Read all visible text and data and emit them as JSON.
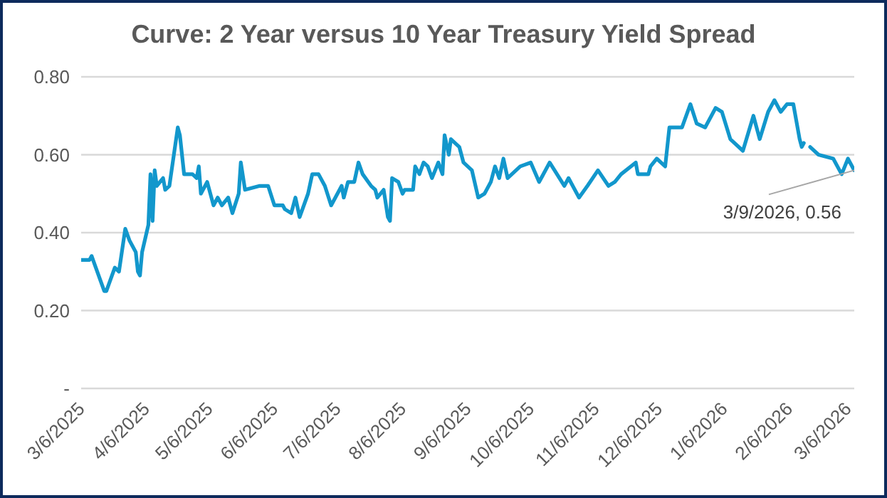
{
  "chart_data": {
    "type": "line",
    "title": "Curve: 2 Year versus 10 Year Treasury Yield Spread",
    "x": [
      "2025-03-06",
      "2025-03-10",
      "2025-03-11",
      "2025-03-13",
      "2025-03-17",
      "2025-03-18",
      "2025-03-22",
      "2025-03-24",
      "2025-03-27",
      "2025-03-29",
      "2025-04-01",
      "2025-04-02",
      "2025-04-03",
      "2025-04-04",
      "2025-04-07",
      "2025-04-08",
      "2025-04-09",
      "2025-04-10",
      "2025-04-11",
      "2025-04-14",
      "2025-04-15",
      "2025-04-17",
      "2025-04-21",
      "2025-04-22",
      "2025-04-24",
      "2025-04-28",
      "2025-04-30",
      "2025-05-01",
      "2025-05-02",
      "2025-05-05",
      "2025-05-08",
      "2025-05-10",
      "2025-05-12",
      "2025-05-15",
      "2025-05-17",
      "2025-05-20",
      "2025-05-21",
      "2025-05-23",
      "2025-05-30",
      "2025-06-03",
      "2025-06-06",
      "2025-06-10",
      "2025-06-11",
      "2025-06-14",
      "2025-06-16",
      "2025-06-18",
      "2025-06-22",
      "2025-06-24",
      "2025-06-27",
      "2025-06-30",
      "2025-07-03",
      "2025-07-08",
      "2025-07-09",
      "2025-07-11",
      "2025-07-14",
      "2025-07-16",
      "2025-07-18",
      "2025-07-22",
      "2025-07-24",
      "2025-07-25",
      "2025-07-28",
      "2025-07-30",
      "2025-07-31",
      "2025-08-01",
      "2025-08-04",
      "2025-08-06",
      "2025-08-07",
      "2025-08-11",
      "2025-08-12",
      "2025-08-14",
      "2025-08-16",
      "2025-08-18",
      "2025-08-20",
      "2025-08-23",
      "2025-08-25",
      "2025-08-26",
      "2025-08-28",
      "2025-08-29",
      "2025-09-02",
      "2025-09-04",
      "2025-09-08",
      "2025-09-11",
      "2025-09-14",
      "2025-09-17",
      "2025-09-19",
      "2025-09-21",
      "2025-09-23",
      "2025-09-25",
      "2025-10-01",
      "2025-10-06",
      "2025-10-10",
      "2025-10-15",
      "2025-10-22",
      "2025-10-24",
      "2025-10-29",
      "2025-11-02",
      "2025-11-07",
      "2025-11-12",
      "2025-11-15",
      "2025-11-18",
      "2025-11-25",
      "2025-11-26",
      "2025-12-01",
      "2025-12-02",
      "2025-12-05",
      "2025-12-09",
      "2025-12-11",
      "2025-12-17",
      "2025-12-21",
      "2025-12-24",
      "2025-12-28",
      "2026-01-02",
      "2026-01-05",
      "2026-01-09",
      "2026-01-15",
      "2026-01-20",
      "2026-01-23",
      "2026-01-27",
      "2026-01-30",
      "2026-02-02",
      "2026-02-05",
      "2026-02-08",
      "2026-02-11",
      "2026-02-12",
      "2026-02-13",
      "2026-02-14",
      "2026-02-16",
      "2026-02-20",
      "2026-02-27",
      "2026-03-03",
      "2026-03-06",
      "2026-03-09"
    ],
    "series": [
      {
        "color": "#1297cc",
        "values": [
          0.33,
          0.33,
          0.34,
          0.31,
          0.25,
          0.25,
          0.31,
          0.3,
          0.41,
          0.38,
          0.35,
          0.3,
          0.29,
          0.35,
          0.42,
          0.55,
          0.43,
          0.56,
          0.52,
          0.54,
          0.51,
          0.52,
          0.67,
          0.65,
          0.55,
          0.55,
          0.54,
          0.57,
          0.5,
          0.53,
          0.47,
          0.49,
          0.47,
          0.49,
          0.45,
          0.5,
          0.58,
          0.51,
          0.52,
          0.52,
          0.47,
          0.47,
          0.46,
          0.45,
          0.49,
          0.44,
          0.5,
          0.55,
          0.55,
          0.52,
          0.47,
          0.52,
          0.49,
          0.53,
          0.53,
          0.58,
          0.55,
          0.52,
          0.51,
          0.49,
          0.51,
          0.44,
          0.43,
          0.54,
          0.53,
          0.5,
          0.51,
          0.51,
          0.57,
          0.55,
          0.58,
          0.57,
          0.54,
          0.58,
          0.55,
          0.65,
          0.6,
          0.64,
          0.62,
          0.58,
          0.56,
          0.49,
          0.5,
          0.53,
          0.57,
          0.54,
          0.59,
          0.54,
          0.57,
          0.58,
          0.53,
          0.58,
          0.52,
          0.54,
          0.49,
          0.52,
          0.56,
          0.52,
          0.53,
          0.55,
          0.58,
          0.55,
          0.55,
          0.57,
          0.59,
          0.57,
          0.67,
          0.67,
          0.73,
          0.68,
          0.67,
          0.72,
          0.71,
          0.64,
          0.61,
          0.7,
          0.64,
          0.71,
          0.74,
          0.71,
          0.73,
          0.73,
          0.64,
          0.62,
          0.63,
          null,
          0.62,
          0.6,
          0.59,
          0.55,
          0.59,
          0.56
        ]
      }
    ],
    "xlim": [
      "2025-03-06",
      "2026-03-09"
    ],
    "xticks": [
      {
        "value": "2025-03-06",
        "label": "3/6/2025"
      },
      {
        "value": "2025-04-06",
        "label": "4/6/2025"
      },
      {
        "value": "2025-05-06",
        "label": "5/6/2025"
      },
      {
        "value": "2025-06-06",
        "label": "6/6/2025"
      },
      {
        "value": "2025-07-06",
        "label": "7/6/2025"
      },
      {
        "value": "2025-08-06",
        "label": "8/6/2025"
      },
      {
        "value": "2025-09-06",
        "label": "9/6/2025"
      },
      {
        "value": "2025-10-06",
        "label": "10/6/2025"
      },
      {
        "value": "2025-11-06",
        "label": "11/6/2025"
      },
      {
        "value": "2025-12-06",
        "label": "12/6/2025"
      },
      {
        "value": "2026-01-06",
        "label": "1/6/2026"
      },
      {
        "value": "2026-02-06",
        "label": "2/6/2026"
      },
      {
        "value": "2026-03-06",
        "label": "3/6/2026"
      }
    ],
    "ylim": [
      0,
      0.8
    ],
    "yticks": [
      {
        "value": 0,
        "label": "-"
      },
      {
        "value": 0.2,
        "label": "0.20"
      },
      {
        "value": 0.4,
        "label": "0.40"
      },
      {
        "value": 0.6,
        "label": "0.60"
      },
      {
        "value": 0.8,
        "label": "0.80"
      }
    ],
    "grid": "y",
    "line_style": "solid",
    "annotations": [
      {
        "text": "3/9/2026, 0.56",
        "x": "2026-03-09",
        "y": 0.56
      }
    ]
  }
}
